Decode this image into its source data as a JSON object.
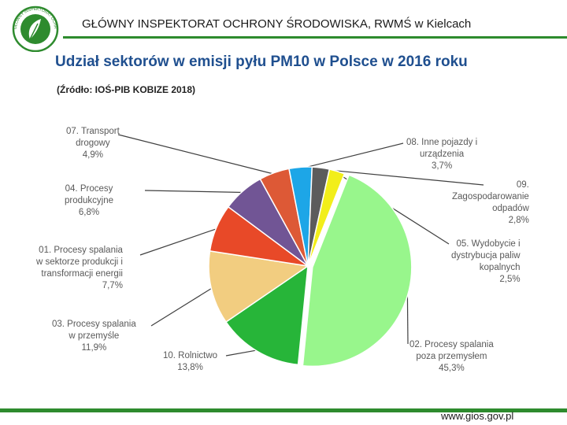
{
  "header": {
    "text": "GŁÓWNY INSPEKTORAT OCHRONY ŚRODOWISKA,   RWMŚ w Kielcach",
    "logo_text": "GŁÓWNY INSPEKTORAT OCHRONY ŚRODOWISKA"
  },
  "title": "Udział sektorów w emisji pyłu PM10 w Polsce w 2016 roku",
  "source": "(Źródło: IOŚ-PIB KOBIZE 2018)",
  "footer": {
    "url": "www.gios.gov.pl"
  },
  "colors": {
    "accent": "#2e8b2e",
    "title": "#1f4f8f"
  },
  "chart_data": {
    "type": "pie",
    "title": "Udział sektorów w emisji pyłu PM10 w Polsce w 2016 roku",
    "unit": "%",
    "slices": [
      {
        "label_lines": [
          "02. Procesy spalania",
          "poza przemysłem"
        ],
        "value_text": "45,3%",
        "value": 45.3,
        "color": "#98f68c"
      },
      {
        "label_lines": [
          "10. Rolnictwo"
        ],
        "value_text": "13,8%",
        "value": 13.8,
        "color": "#27b539"
      },
      {
        "label_lines": [
          "03. Procesy spalania",
          "w przemyśle"
        ],
        "value_text": "11,9%",
        "value": 11.9,
        "color": "#f2cd80"
      },
      {
        "label_lines": [
          "01. Procesy spalania",
          "w sektorze produkcji i",
          "transformacji energii"
        ],
        "value_text": "7,7%",
        "value": 7.7,
        "color": "#e84928"
      },
      {
        "label_lines": [
          "04. Procesy",
          "produkcyjne"
        ],
        "value_text": "6,8%",
        "value": 6.8,
        "color": "#715595"
      },
      {
        "label_lines": [
          "07. Transport",
          "drogowy"
        ],
        "value_text": "4,9%",
        "value": 4.9,
        "color": "#dd5936"
      },
      {
        "label_lines": [
          "08. Inne pojazdy i",
          "urządzenia"
        ],
        "value_text": "3,7%",
        "value": 3.7,
        "color": "#1da6e7"
      },
      {
        "label_lines": [
          "09.",
          "Zagospodarowanie",
          "odpadów"
        ],
        "value_text": "2,8%",
        "value": 2.8,
        "color": "#5c5c5c"
      },
      {
        "label_lines": [
          "05. Wydobycie i",
          "dystrybucja paliw",
          "kopalnych"
        ],
        "value_text": "2,5%",
        "value": 2.5,
        "color": "#f2ee1a"
      }
    ]
  }
}
